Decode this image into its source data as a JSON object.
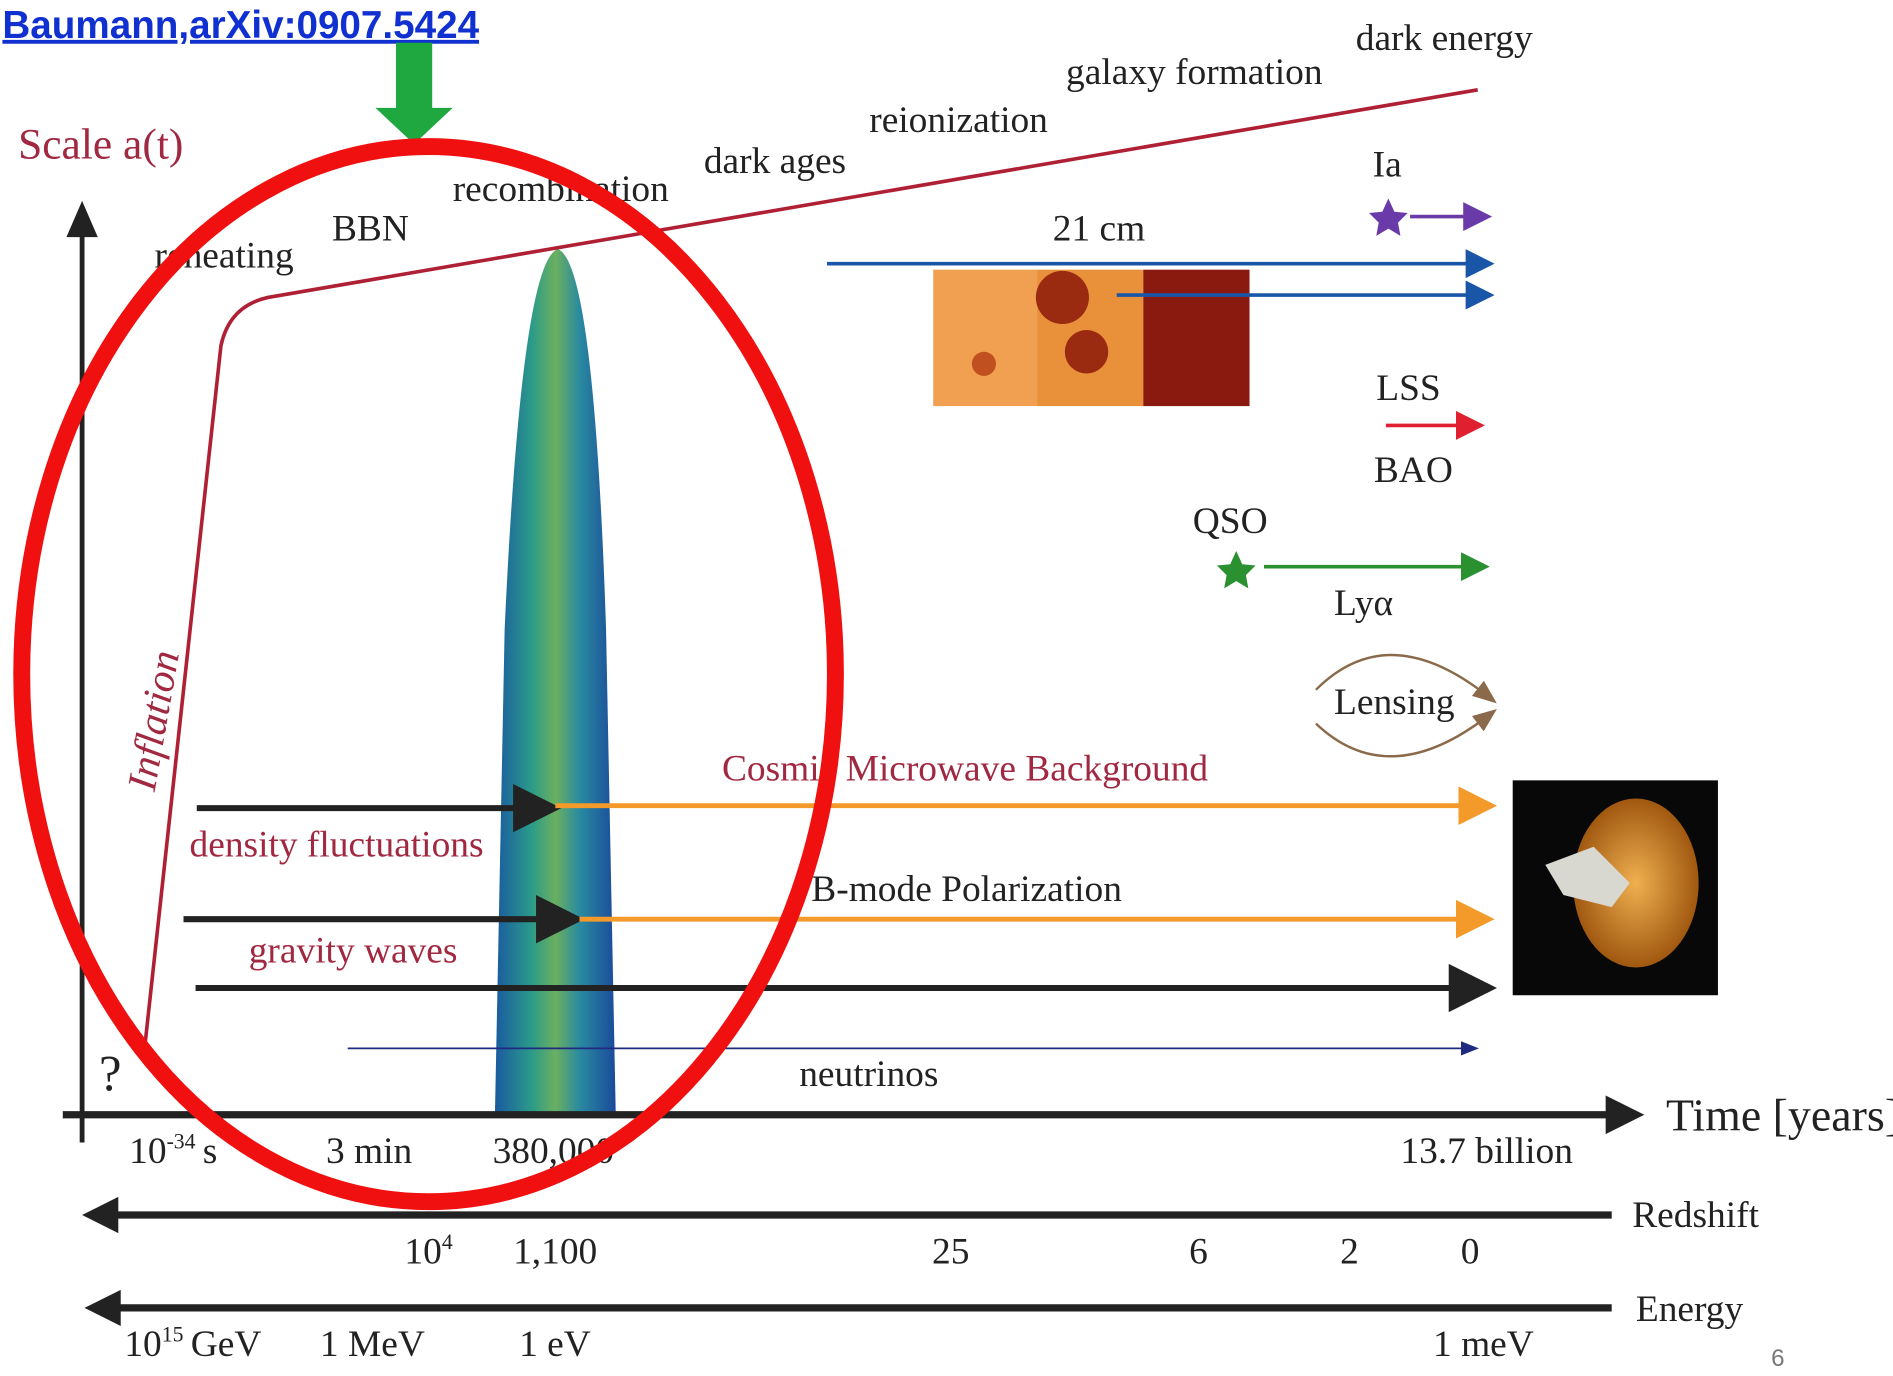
{
  "header": {
    "citation": "Baumann,arXiv:0907.5424",
    "page_number": "6"
  },
  "scale_axis": {
    "label": "Scale a(t)"
  },
  "epochs": [
    "reheating",
    "BBN",
    "recombination",
    "dark ages",
    "reionization",
    "galaxy formation",
    "dark energy"
  ],
  "inflation": "Inflation",
  "origin_mark": "?",
  "probes": {
    "cm21": "21 cm",
    "sn": "Ia",
    "lss": "LSS",
    "bao": "BAO",
    "qso": "QSO",
    "lya": "Lyα",
    "lensing": "Lensing",
    "cmb": "Cosmic Microwave Background",
    "bmode": "B-mode Polarization",
    "density": "density fluctuations",
    "gw": "gravity waves",
    "neutrinos": "neutrinos"
  },
  "time_axis": {
    "label": "Time [years]",
    "ticks": [
      {
        "base": "10",
        "sup": "-34",
        "unit": "s"
      },
      {
        "base": "3 min"
      },
      {
        "base": "380,000"
      },
      {
        "base": "13.7 billion"
      }
    ]
  },
  "redshift_axis": {
    "label": "Redshift",
    "ticks": [
      {
        "base": "10",
        "sup": "4"
      },
      {
        "base": "1,100"
      },
      {
        "base": "25"
      },
      {
        "base": "6"
      },
      {
        "base": "2"
      },
      {
        "base": "0"
      }
    ]
  },
  "energy_axis": {
    "label": "Energy",
    "ticks": [
      {
        "base": "10",
        "sup": "15",
        "unit": "GeV"
      },
      {
        "base": "1 MeV"
      },
      {
        "base": "1 eV"
      },
      {
        "base": "1 meV"
      }
    ]
  }
}
